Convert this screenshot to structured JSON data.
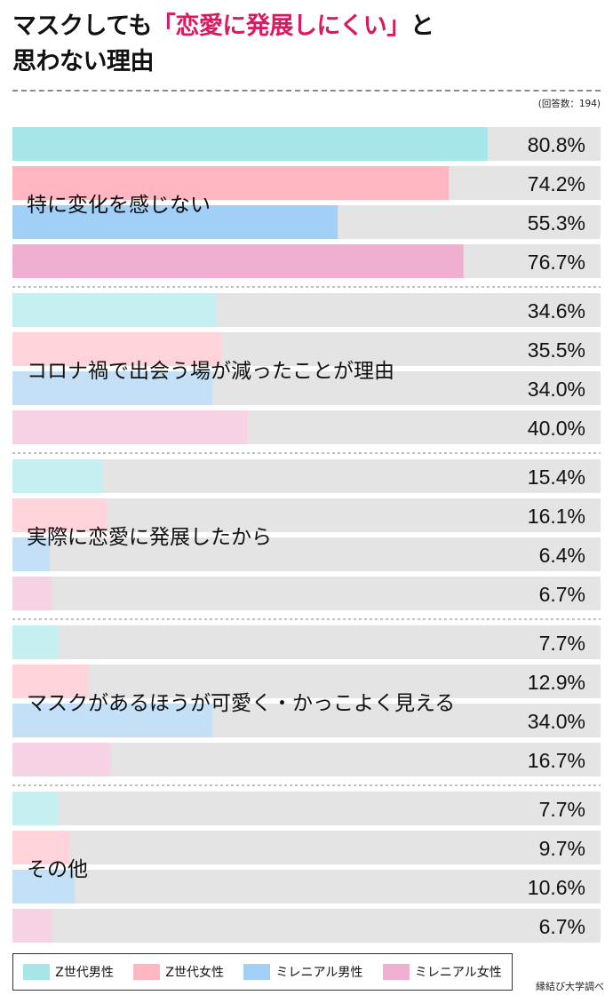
{
  "header": {
    "title_part1": "マスクしても",
    "title_accent": "「恋愛に発展しにくい」",
    "title_part2": "と",
    "title_line2": "思わない理由",
    "responses": "(回答数：194)"
  },
  "footer": {
    "source": "縁結び大学調べ"
  },
  "colors": {
    "z_male": "#a6e5e8",
    "z_female": "#ffb6c1",
    "mil_male": "#a2cff5",
    "mil_female": "#f0afd0",
    "z_male_light": "#c6eff1",
    "z_female_light": "#ffd3da",
    "mil_male_light": "#c3e0f7",
    "mil_female_light": "#f6d3e4",
    "track": "#e4e4e4"
  },
  "chart_data": {
    "type": "bar",
    "orientation": "horizontal",
    "title": "マスクしても「恋愛に発展しにくい」と思わない理由",
    "xlim": [
      0,
      100
    ],
    "value_suffix": "%",
    "legend_position": "bottom",
    "series_names": [
      "Z世代男性",
      "Z世代女性",
      "ミレニアル男性",
      "ミレニアル女性"
    ],
    "categories": [
      {
        "label": "特に変化を感じない",
        "values": [
          80.8,
          74.2,
          55.3,
          76.7
        ],
        "highlight": true
      },
      {
        "label": "コロナ禍で出会う場が減ったことが理由",
        "values": [
          34.6,
          35.5,
          34.0,
          40.0
        ],
        "highlight": false
      },
      {
        "label": "実際に恋愛に発展したから",
        "values": [
          15.4,
          16.1,
          6.4,
          6.7
        ],
        "highlight": false
      },
      {
        "label": "マスクがあるほうが可愛く・かっこよく見える",
        "values": [
          7.7,
          12.9,
          34.0,
          16.7
        ],
        "highlight": false
      },
      {
        "label": "その他",
        "values": [
          7.7,
          9.7,
          10.6,
          6.7
        ],
        "highlight": false
      }
    ]
  }
}
